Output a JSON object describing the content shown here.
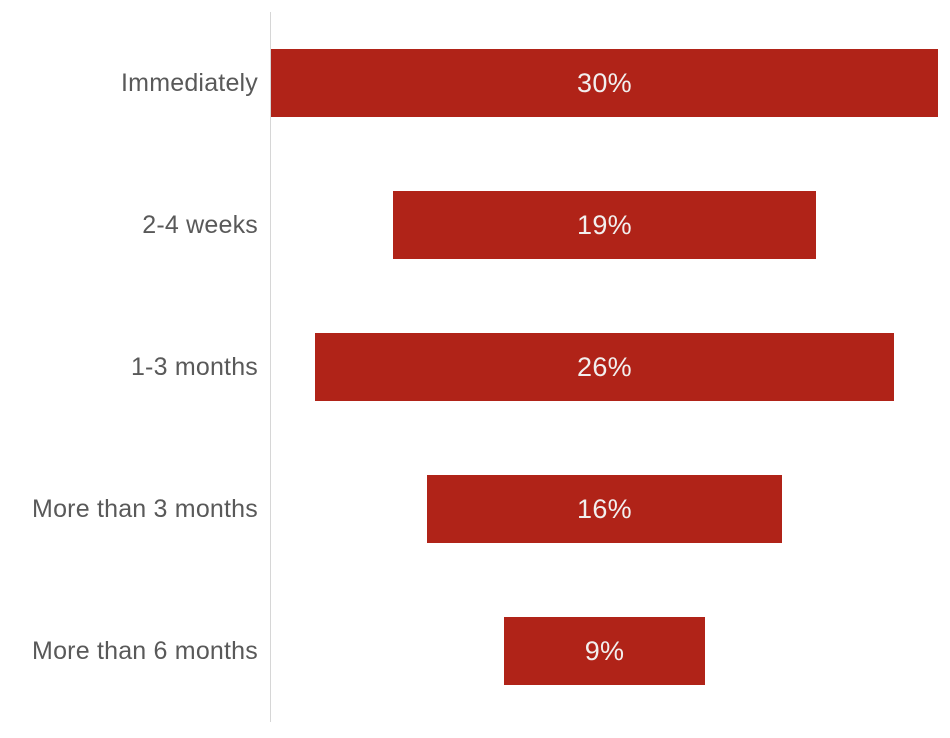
{
  "chart_data": {
    "type": "bar",
    "orientation": "horizontal-centered",
    "title": "",
    "xlabel": "",
    "ylabel": "",
    "categories": [
      "Immediately",
      "2-4 weeks",
      "1-3 months",
      "More than 3 months",
      "More than 6 months"
    ],
    "values": [
      30,
      19,
      26,
      16,
      9
    ],
    "value_labels": [
      "30%",
      "19%",
      "26%",
      "16%",
      "9%"
    ],
    "xlim": [
      0,
      30
    ],
    "grid": false,
    "legend": false,
    "axis_line": "vertical-left",
    "bar_color": "#B02318",
    "value_label_color": "#F2EFEE",
    "category_label_color": "#595959",
    "axis_line_color": "#D6D6D6",
    "background_color": "#FFFFFF"
  }
}
